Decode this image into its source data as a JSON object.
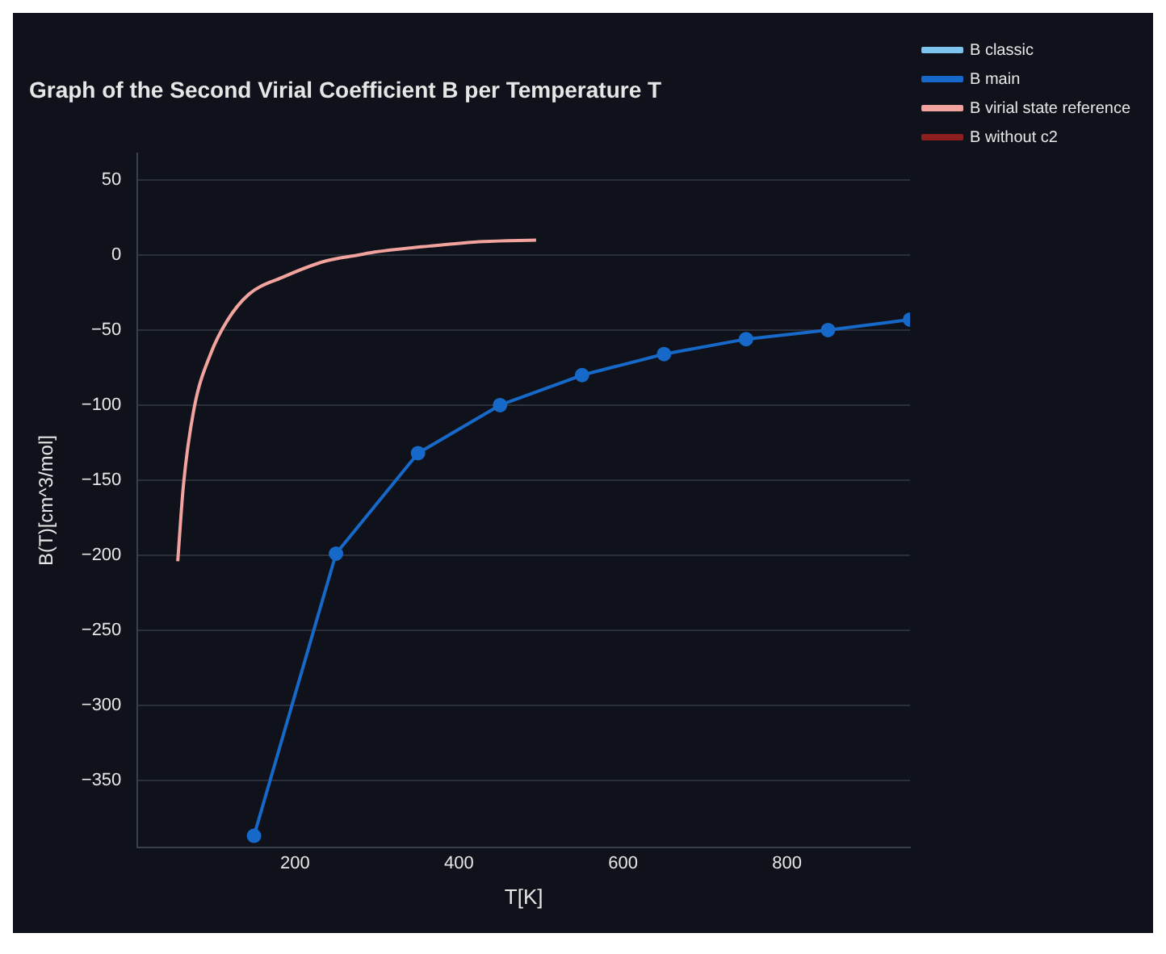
{
  "chart_data": {
    "type": "line",
    "title": "Graph of the Second Virial Coefficient B per Temperature T",
    "xlabel": "T[K]",
    "ylabel": "B(T)[cm^3/mol]",
    "xlim": [
      8,
      950
    ],
    "xticks": [
      200,
      400,
      600,
      800
    ],
    "ylim": [
      -395,
      68
    ],
    "yticks": [
      50,
      0,
      {
        "value": -50,
        "label": "−50"
      },
      {
        "value": -100,
        "label": "−100"
      },
      {
        "value": -150,
        "label": "−150"
      },
      {
        "value": -200,
        "label": "−200"
      },
      {
        "value": -250,
        "label": "−250"
      },
      {
        "value": -300,
        "label": "−300"
      },
      {
        "value": -350,
        "label": "−350"
      }
    ],
    "grid": "y",
    "legend": "top right",
    "series": [
      {
        "name": "B classic",
        "color": "#7ec3ee",
        "marker": "circle"
      },
      {
        "name": "B main",
        "color": "#1769c9",
        "marker": "circle",
        "x": [
          150,
          250,
          350,
          450,
          550,
          650,
          750,
          850,
          950
        ],
        "values": [
          -387,
          -199,
          -132,
          -100,
          -80,
          -66,
          -56,
          -50,
          -43
        ]
      },
      {
        "name": "B virial state reference",
        "color": "#f2a39d",
        "marker": "none",
        "x": [
          57,
          64,
          77,
          97,
          117,
          144,
          184,
          237,
          277,
          297,
          364,
          430,
          494
        ],
        "values": [
          -204,
          -153,
          -102,
          -66,
          -44,
          -26,
          -15,
          -4,
          0,
          2,
          6,
          9,
          10
        ]
      },
      {
        "name": "B without c2",
        "color": "#8e1f1f",
        "marker": "circle"
      }
    ]
  }
}
